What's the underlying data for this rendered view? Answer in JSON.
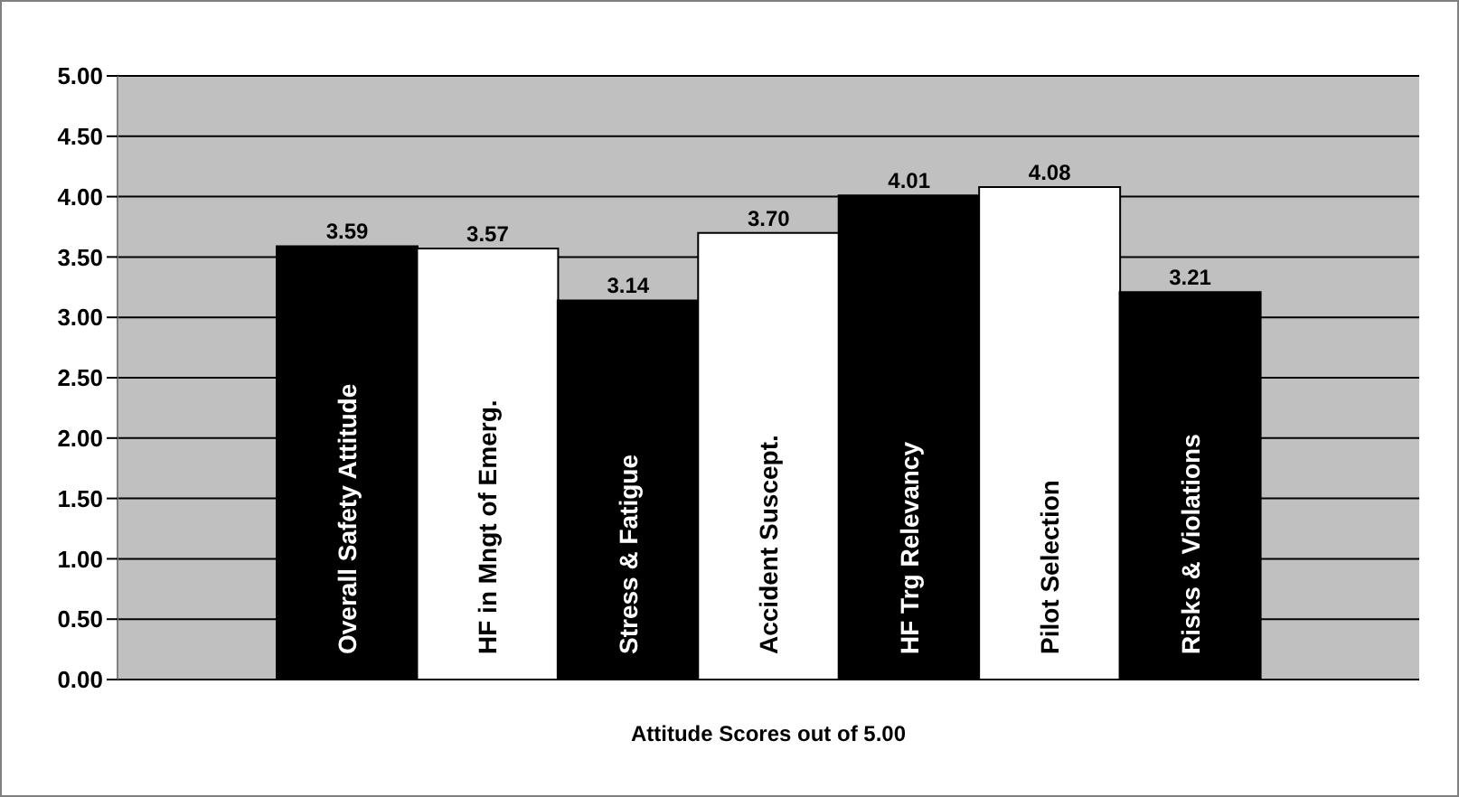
{
  "chart_data": {
    "type": "bar",
    "xlabel": "Attitude Scores out of 5.00",
    "categories": [
      "Overall Safety Attitude",
      "HF in Mngt of Emerg.",
      "Stress & Fatigue",
      "Accident Suscept.",
      "HF Trg Relevancy",
      "Pilot Selection",
      "Risks & Violations"
    ],
    "values": [
      3.59,
      3.57,
      3.14,
      3.7,
      4.01,
      4.08,
      3.21
    ],
    "colors": [
      "#000000",
      "#ffffff",
      "#000000",
      "#ffffff",
      "#000000",
      "#ffffff",
      "#000000"
    ],
    "ylim": [
      0,
      5
    ],
    "yticks": [
      {
        "value": 0,
        "label": "0.00"
      },
      {
        "value": 0.5,
        "label": "0.50"
      },
      {
        "value": 1,
        "label": "1.00"
      },
      {
        "value": 1.5,
        "label": "1.50"
      },
      {
        "value": 2,
        "label": "2.00"
      },
      {
        "value": 2.5,
        "label": "2.50"
      },
      {
        "value": 3,
        "label": "3.00"
      },
      {
        "value": 3.5,
        "label": "3.50"
      },
      {
        "value": 4,
        "label": "4.00"
      },
      {
        "value": 4.5,
        "label": "4.50"
      },
      {
        "value": 5,
        "label": "5.00"
      }
    ],
    "grid": "y",
    "value_labels": [
      "3.59",
      "3.57",
      "3.14",
      "3.70",
      "4.01",
      "4.08",
      "3.21"
    ]
  }
}
